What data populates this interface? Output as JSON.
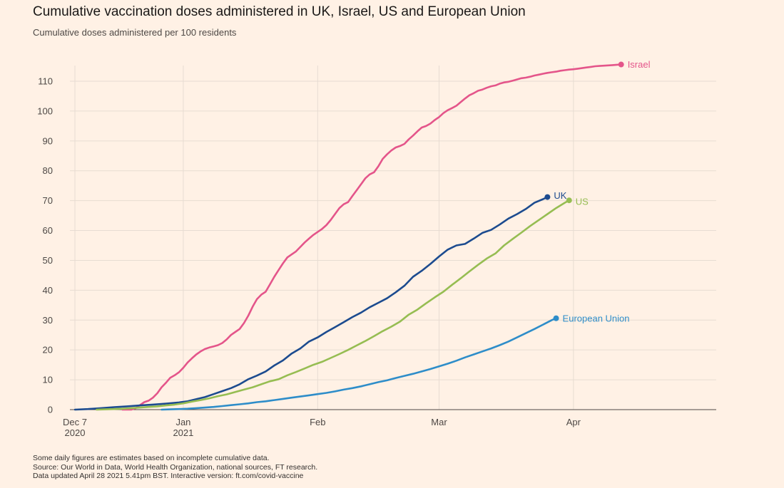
{
  "title": "Cumulative vaccination doses administered in UK, Israel, US and European Union",
  "subtitle": "Cumulative doses administered per 100 residents",
  "footnotes": [
    "Some daily figures are estimates based on incomplete cumulative data.",
    "Source: Our World in Data, World Health Organization, national sources, FT research.",
    "Data updated April 28 2021 5.41pm BST. Interactive version: ft.com/covid-vaccine"
  ],
  "chart_data": {
    "type": "line",
    "title": "Cumulative vaccination doses administered in UK, Israel, US and European Union",
    "subtitle": "Cumulative doses administered per 100 residents",
    "xlabel": "",
    "ylabel": "",
    "x_ticks": [
      {
        "day": 0,
        "line1": "Dec 7",
        "line2": "2020"
      },
      {
        "day": 25,
        "line1": "Jan",
        "line2": "2021"
      },
      {
        "day": 56,
        "line1": "Feb",
        "line2": ""
      },
      {
        "day": 84,
        "line1": "Mar",
        "line2": ""
      },
      {
        "day": 115,
        "line1": "Apr",
        "line2": ""
      }
    ],
    "x_range_days": [
      -3,
      143
    ],
    "ylim": [
      0,
      117
    ],
    "y_ticks": [
      0,
      10,
      20,
      30,
      40,
      50,
      60,
      70,
      80,
      90,
      100,
      110
    ],
    "grid": true,
    "series": [
      {
        "name": "Israel",
        "color": "#e4558a",
        "points": [
          [
            11,
            0
          ],
          [
            13,
            0
          ],
          [
            14,
            0.5
          ],
          [
            15,
            1.5
          ],
          [
            16,
            2.5
          ],
          [
            17,
            3
          ],
          [
            18,
            4
          ],
          [
            19,
            5.5
          ],
          [
            20,
            7.5
          ],
          [
            21,
            9
          ],
          [
            22,
            10.7
          ],
          [
            23,
            11.5
          ],
          [
            24,
            12.5
          ],
          [
            25,
            14
          ],
          [
            26,
            15.8
          ],
          [
            27,
            17.2
          ],
          [
            28,
            18.5
          ],
          [
            29,
            19.5
          ],
          [
            30,
            20.3
          ],
          [
            31,
            20.8
          ],
          [
            32,
            21.2
          ],
          [
            33,
            21.6
          ],
          [
            34,
            22.3
          ],
          [
            35,
            23.5
          ],
          [
            36,
            25
          ],
          [
            37,
            26
          ],
          [
            38,
            27
          ],
          [
            39,
            29
          ],
          [
            40,
            31.5
          ],
          [
            41,
            34.5
          ],
          [
            42,
            37
          ],
          [
            43,
            38.5
          ],
          [
            44,
            39.5
          ],
          [
            45,
            42
          ],
          [
            46,
            44.5
          ],
          [
            47,
            46.8
          ],
          [
            48,
            49
          ],
          [
            49,
            51
          ],
          [
            50,
            52
          ],
          [
            51,
            53
          ],
          [
            52,
            54.5
          ],
          [
            53,
            56
          ],
          [
            54,
            57.3
          ],
          [
            55,
            58.5
          ],
          [
            56,
            59.5
          ],
          [
            57,
            60.5
          ],
          [
            58,
            61.8
          ],
          [
            59,
            63.5
          ],
          [
            60,
            65.5
          ],
          [
            61,
            67.5
          ],
          [
            62,
            68.8
          ],
          [
            63,
            69.5
          ],
          [
            64,
            71.5
          ],
          [
            65,
            73.5
          ],
          [
            66,
            75.5
          ],
          [
            67,
            77.5
          ],
          [
            68,
            78.8
          ],
          [
            69,
            79.5
          ],
          [
            70,
            81.5
          ],
          [
            71,
            84
          ],
          [
            72,
            85.5
          ],
          [
            73,
            86.8
          ],
          [
            74,
            87.8
          ],
          [
            75,
            88.3
          ],
          [
            76,
            89
          ],
          [
            77,
            90.5
          ],
          [
            78,
            91.8
          ],
          [
            79,
            93.2
          ],
          [
            80,
            94.5
          ],
          [
            81,
            95
          ],
          [
            82,
            95.8
          ],
          [
            83,
            97
          ],
          [
            84,
            98
          ],
          [
            85,
            99.3
          ],
          [
            86,
            100.3
          ],
          [
            87,
            101
          ],
          [
            88,
            101.8
          ],
          [
            89,
            103
          ],
          [
            90,
            104.2
          ],
          [
            91,
            105.3
          ],
          [
            92,
            106
          ],
          [
            93,
            106.8
          ],
          [
            94,
            107.2
          ],
          [
            95,
            107.8
          ],
          [
            96,
            108.3
          ],
          [
            97,
            108.6
          ],
          [
            98,
            109.2
          ],
          [
            99,
            109.6
          ],
          [
            100,
            109.8
          ],
          [
            101,
            110.2
          ],
          [
            102,
            110.6
          ],
          [
            103,
            111
          ],
          [
            104,
            111.2
          ],
          [
            105,
            111.5
          ],
          [
            106,
            111.9
          ],
          [
            107,
            112.2
          ],
          [
            108,
            112.5
          ],
          [
            109,
            112.8
          ],
          [
            110,
            113
          ],
          [
            111,
            113.2
          ],
          [
            112,
            113.5
          ],
          [
            113,
            113.7
          ],
          [
            114,
            113.9
          ],
          [
            115,
            114
          ],
          [
            116,
            114.2
          ],
          [
            117,
            114.4
          ],
          [
            118,
            114.6
          ],
          [
            119,
            114.8
          ],
          [
            120,
            115
          ],
          [
            121,
            115.1
          ],
          [
            122,
            115.2
          ],
          [
            123,
            115.3
          ],
          [
            124,
            115.4
          ],
          [
            125,
            115.5
          ],
          [
            126,
            115.6
          ]
        ]
      },
      {
        "name": "UK",
        "color": "#1c4b8f",
        "points": [
          [
            0,
            0
          ],
          [
            3,
            0.2
          ],
          [
            6,
            0.5
          ],
          [
            9,
            0.8
          ],
          [
            12,
            1.1
          ],
          [
            15,
            1.4
          ],
          [
            18,
            1.7
          ],
          [
            21,
            2
          ],
          [
            24,
            2.4
          ],
          [
            26,
            2.8
          ],
          [
            28,
            3.5
          ],
          [
            30,
            4.2
          ],
          [
            32,
            5.2
          ],
          [
            34,
            6.2
          ],
          [
            36,
            7.2
          ],
          [
            38,
            8.5
          ],
          [
            40,
            10.2
          ],
          [
            42,
            11.4
          ],
          [
            44,
            12.8
          ],
          [
            46,
            14.8
          ],
          [
            48,
            16.5
          ],
          [
            50,
            18.8
          ],
          [
            52,
            20.5
          ],
          [
            54,
            22.8
          ],
          [
            56,
            24.2
          ],
          [
            58,
            26
          ],
          [
            60,
            27.6
          ],
          [
            62,
            29.3
          ],
          [
            64,
            31
          ],
          [
            66,
            32.5
          ],
          [
            68,
            34.3
          ],
          [
            70,
            35.8
          ],
          [
            72,
            37.3
          ],
          [
            74,
            39.3
          ],
          [
            76,
            41.5
          ],
          [
            78,
            44.5
          ],
          [
            80,
            46.5
          ],
          [
            82,
            48.8
          ],
          [
            84,
            51.3
          ],
          [
            86,
            53.6
          ],
          [
            88,
            55
          ],
          [
            90,
            55.5
          ],
          [
            92,
            57.3
          ],
          [
            94,
            59.2
          ],
          [
            96,
            60.2
          ],
          [
            98,
            62
          ],
          [
            100,
            64
          ],
          [
            102,
            65.5
          ],
          [
            104,
            67.2
          ],
          [
            106,
            69.3
          ],
          [
            108,
            70.5
          ],
          [
            109,
            71.2
          ]
        ]
      },
      {
        "name": "US",
        "color": "#96bd52",
        "points": [
          [
            5,
            0
          ],
          [
            7,
            0.1
          ],
          [
            9,
            0.2
          ],
          [
            11,
            0.3
          ],
          [
            13,
            0.5
          ],
          [
            15,
            0.7
          ],
          [
            17,
            0.9
          ],
          [
            19,
            1.1
          ],
          [
            21,
            1.4
          ],
          [
            23,
            1.7
          ],
          [
            25,
            2.1
          ],
          [
            27,
            2.7
          ],
          [
            29,
            3.2
          ],
          [
            31,
            3.8
          ],
          [
            33,
            4.5
          ],
          [
            35,
            5.1
          ],
          [
            37,
            5.9
          ],
          [
            39,
            6.7
          ],
          [
            41,
            7.5
          ],
          [
            43,
            8.5
          ],
          [
            45,
            9.5
          ],
          [
            47,
            10.2
          ],
          [
            49,
            11.5
          ],
          [
            51,
            12.6
          ],
          [
            53,
            13.8
          ],
          [
            55,
            15
          ],
          [
            57,
            16
          ],
          [
            59,
            17.3
          ],
          [
            61,
            18.6
          ],
          [
            63,
            20
          ],
          [
            65,
            21.5
          ],
          [
            67,
            23
          ],
          [
            69,
            24.6
          ],
          [
            71,
            26.3
          ],
          [
            73,
            27.8
          ],
          [
            75,
            29.5
          ],
          [
            77,
            31.8
          ],
          [
            79,
            33.5
          ],
          [
            81,
            35.6
          ],
          [
            83,
            37.6
          ],
          [
            85,
            39.5
          ],
          [
            87,
            41.8
          ],
          [
            89,
            44
          ],
          [
            91,
            46.3
          ],
          [
            93,
            48.5
          ],
          [
            95,
            50.6
          ],
          [
            97,
            52.3
          ],
          [
            99,
            55
          ],
          [
            101,
            57.2
          ],
          [
            103,
            59.3
          ],
          [
            105,
            61.5
          ],
          [
            107,
            63.5
          ],
          [
            109,
            65.5
          ],
          [
            111,
            67.5
          ],
          [
            113,
            69.3
          ],
          [
            114,
            70.1
          ]
        ]
      },
      {
        "name": "European Union",
        "color": "#2e8dc9",
        "points": [
          [
            20,
            0
          ],
          [
            22,
            0.1
          ],
          [
            24,
            0.2
          ],
          [
            26,
            0.3
          ],
          [
            28,
            0.5
          ],
          [
            30,
            0.7
          ],
          [
            32,
            0.9
          ],
          [
            34,
            1.2
          ],
          [
            36,
            1.5
          ],
          [
            38,
            1.8
          ],
          [
            40,
            2.1
          ],
          [
            42,
            2.5
          ],
          [
            44,
            2.8
          ],
          [
            46,
            3.2
          ],
          [
            48,
            3.6
          ],
          [
            50,
            4
          ],
          [
            52,
            4.4
          ],
          [
            54,
            4.8
          ],
          [
            56,
            5.2
          ],
          [
            58,
            5.6
          ],
          [
            60,
            6.1
          ],
          [
            62,
            6.7
          ],
          [
            64,
            7.2
          ],
          [
            66,
            7.8
          ],
          [
            68,
            8.5
          ],
          [
            70,
            9.2
          ],
          [
            72,
            9.8
          ],
          [
            74,
            10.6
          ],
          [
            76,
            11.3
          ],
          [
            78,
            12
          ],
          [
            80,
            12.8
          ],
          [
            82,
            13.6
          ],
          [
            84,
            14.5
          ],
          [
            86,
            15.4
          ],
          [
            88,
            16.4
          ],
          [
            90,
            17.5
          ],
          [
            92,
            18.5
          ],
          [
            94,
            19.5
          ],
          [
            96,
            20.5
          ],
          [
            98,
            21.6
          ],
          [
            100,
            22.8
          ],
          [
            102,
            24.2
          ],
          [
            104,
            25.6
          ],
          [
            106,
            27
          ],
          [
            108,
            28.5
          ],
          [
            110,
            30
          ],
          [
            111,
            30.6
          ]
        ]
      }
    ]
  }
}
